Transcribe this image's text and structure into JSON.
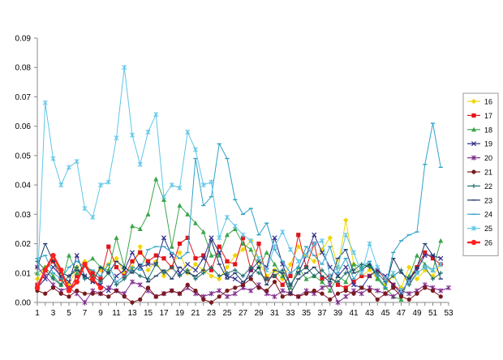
{
  "chart_data": {
    "type": "line",
    "x": [
      1,
      2,
      3,
      4,
      5,
      6,
      7,
      8,
      9,
      10,
      11,
      12,
      13,
      14,
      15,
      16,
      17,
      18,
      19,
      20,
      21,
      22,
      23,
      24,
      25,
      26,
      27,
      28,
      29,
      30,
      31,
      32,
      33,
      34,
      35,
      36,
      37,
      38,
      39,
      40,
      41,
      42,
      43,
      44,
      45,
      46,
      47,
      48,
      49,
      50,
      51,
      52,
      53
    ],
    "x_ticks": [
      1,
      3,
      5,
      7,
      9,
      11,
      13,
      15,
      17,
      19,
      21,
      23,
      25,
      27,
      29,
      31,
      33,
      35,
      37,
      39,
      41,
      43,
      45,
      47,
      49,
      51,
      53
    ],
    "ylim": [
      0,
      0.09
    ],
    "y_ticks": [
      "0.00",
      "0.01",
      "0.02",
      "0.03",
      "0.04",
      "0.05",
      "0.06",
      "0.07",
      "0.08",
      "0.09"
    ],
    "grid": false,
    "legend_position": "right",
    "series": [
      {
        "name": "16",
        "color": "#f2d600",
        "marker": "diamond",
        "values": [
          0.008,
          0.012,
          0.015,
          0.01,
          0.006,
          0.012,
          0.014,
          0.009,
          0.011,
          0.013,
          0.015,
          0.01,
          0.012,
          0.019,
          0.011,
          0.014,
          0.009,
          0.012,
          0.017,
          0.01,
          0.013,
          0.011,
          0.009,
          0.008,
          0.012,
          0.016,
          0.018,
          0.021,
          0.014,
          0.009,
          0.011,
          0.008,
          0.013,
          0.019,
          0.016,
          0.014,
          0.018,
          0.022,
          0.012,
          0.028,
          0.013,
          0.009,
          0.011,
          0.008,
          0.006,
          0.009,
          0.005,
          0.012,
          0.008,
          0.011,
          0.009,
          0.013,
          null
        ]
      },
      {
        "name": "17",
        "color": "#e0161b",
        "marker": "square",
        "values": [
          0.006,
          0.011,
          0.014,
          0.008,
          0.004,
          0.009,
          0.013,
          0.01,
          0.008,
          0.019,
          0.012,
          0.009,
          0.014,
          0.017,
          0.014,
          0.016,
          0.015,
          0.012,
          0.02,
          0.022,
          0.015,
          0.016,
          0.011,
          0.019,
          0.014,
          0.013,
          0.022,
          0.011,
          0.02,
          0.008,
          0.009,
          0.006,
          0.009,
          0.023,
          0.012,
          0.02,
          0.008,
          0.009,
          0.006,
          0.005,
          0.007,
          0.009,
          0.009,
          0.011,
          0.008,
          0.006,
          0.004,
          0.007,
          0.012,
          0.017,
          0.015,
          0.013,
          null
        ]
      },
      {
        "name": "18",
        "color": "#3aa64a",
        "marker": "triangle",
        "values": [
          0.01,
          0.012,
          0.009,
          0.006,
          0.016,
          0.01,
          0.013,
          0.015,
          0.012,
          0.011,
          0.022,
          0.012,
          0.026,
          0.025,
          0.03,
          0.042,
          0.035,
          0.019,
          0.033,
          0.03,
          0.027,
          0.024,
          0.016,
          0.016,
          0.023,
          0.025,
          0.02,
          0.018,
          0.012,
          0.017,
          0.013,
          0.009,
          0.005,
          0.012,
          0.008,
          0.009,
          0.007,
          0.004,
          0.009,
          0.007,
          0.013,
          0.012,
          0.013,
          0.008,
          0.005,
          0.002,
          0.001,
          0.009,
          0.016,
          0.013,
          0.011,
          0.021,
          null
        ]
      },
      {
        "name": "19",
        "color": "#2e2e8c",
        "marker": "x",
        "values": [
          0.005,
          0.008,
          0.012,
          0.009,
          0.007,
          0.016,
          0.009,
          0.007,
          0.006,
          0.004,
          0.009,
          0.011,
          0.017,
          0.012,
          0.013,
          0.013,
          0.022,
          0.016,
          0.01,
          0.013,
          0.011,
          0.015,
          0.022,
          0.017,
          0.009,
          0.008,
          0.006,
          0.011,
          0.014,
          0.012,
          0.022,
          0.013,
          0.006,
          0.01,
          0.016,
          0.023,
          0.017,
          0.012,
          0.009,
          0.012,
          0.006,
          0.005,
          0.009,
          0.011,
          0.009,
          0.006,
          0.003,
          0.008,
          0.011,
          0.016,
          0.016,
          0.015,
          null
        ]
      },
      {
        "name": "20",
        "color": "#7f2b8c",
        "marker": "star",
        "values": [
          0.012,
          0.009,
          0.006,
          0.004,
          0.005,
          0.003,
          0.0,
          0.004,
          0.003,
          0.005,
          0.004,
          0.003,
          0.007,
          0.006,
          0.004,
          0.002,
          0.003,
          0.004,
          0.003,
          0.005,
          0.003,
          0.002,
          0.003,
          0.004,
          0.002,
          0.003,
          0.005,
          0.004,
          0.006,
          0.003,
          0.002,
          0.004,
          0.003,
          0.002,
          0.004,
          0.003,
          0.005,
          0.006,
          0.0,
          0.002,
          0.004,
          0.003,
          0.005,
          0.004,
          0.003,
          0.002,
          0.004,
          0.003,
          0.004,
          0.006,
          0.005,
          0.004,
          0.005
        ]
      },
      {
        "name": "21",
        "color": "#7b1a1e",
        "marker": "circle",
        "values": [
          0.004,
          0.003,
          0.005,
          0.003,
          0.002,
          0.004,
          0.003,
          0.003,
          0.003,
          0.002,
          0.004,
          0.002,
          0.0,
          0.001,
          0.005,
          0.002,
          0.003,
          0.004,
          0.003,
          0.006,
          0.004,
          0.001,
          0.0,
          0.002,
          0.004,
          0.005,
          0.006,
          0.008,
          0.005,
          0.004,
          0.007,
          0.002,
          0.003,
          0.002,
          0.003,
          0.004,
          0.003,
          0.001,
          0.003,
          0.004,
          0.003,
          0.005,
          0.004,
          0.001,
          0.003,
          0.005,
          0.002,
          0.001,
          0.003,
          0.005,
          0.004,
          0.002,
          null
        ]
      },
      {
        "name": "22",
        "color": "#1e6e6e",
        "marker": "plus",
        "values": [
          0.014,
          0.011,
          0.008,
          0.006,
          0.009,
          0.012,
          0.008,
          0.009,
          0.007,
          0.01,
          0.006,
          0.008,
          0.011,
          0.009,
          0.008,
          0.013,
          0.01,
          0.012,
          0.009,
          0.011,
          0.008,
          0.01,
          0.012,
          0.009,
          0.01,
          0.011,
          0.009,
          0.012,
          0.01,
          0.008,
          0.009,
          0.011,
          0.006,
          0.01,
          0.012,
          0.009,
          0.011,
          0.008,
          0.007,
          0.01,
          0.011,
          0.013,
          0.012,
          0.01,
          0.007,
          0.009,
          0.011,
          0.006,
          0.01,
          0.012,
          0.008,
          0.01,
          null
        ]
      },
      {
        "name": "23",
        "color": "#1f3b66",
        "marker": "dash",
        "values": [
          0.012,
          0.02,
          0.014,
          0.01,
          0.009,
          0.011,
          0.009,
          0.007,
          0.012,
          0.01,
          0.014,
          0.012,
          0.01,
          0.013,
          0.007,
          0.009,
          0.011,
          0.008,
          0.012,
          0.01,
          0.009,
          0.011,
          0.021,
          0.013,
          0.008,
          0.01,
          0.007,
          0.009,
          0.012,
          0.006,
          0.011,
          0.01,
          0.003,
          0.008,
          0.01,
          0.012,
          0.009,
          0.007,
          0.015,
          0.018,
          0.01,
          0.011,
          0.013,
          0.009,
          0.005,
          0.015,
          0.01,
          0.008,
          0.012,
          0.02,
          0.016,
          0.008,
          null
        ]
      },
      {
        "name": "24",
        "color": "#2fa2c8",
        "marker": "dash",
        "values": [
          0.015,
          0.016,
          0.01,
          0.008,
          0.012,
          0.014,
          0.012,
          0.011,
          0.009,
          0.013,
          0.007,
          0.009,
          0.012,
          0.011,
          0.018,
          0.019,
          0.019,
          0.017,
          0.015,
          0.017,
          0.049,
          0.033,
          0.036,
          0.054,
          0.049,
          0.035,
          0.03,
          0.032,
          0.023,
          0.027,
          0.018,
          0.014,
          0.01,
          0.012,
          0.019,
          0.016,
          0.013,
          0.019,
          0.01,
          0.015,
          0.008,
          0.012,
          0.014,
          0.009,
          0.005,
          0.017,
          0.021,
          0.023,
          0.024,
          0.047,
          0.061,
          0.046,
          null
        ]
      },
      {
        "name": "25",
        "color": "#5fc6e8",
        "marker": "asterisk",
        "values": [
          0.005,
          0.068,
          0.049,
          0.04,
          0.046,
          0.048,
          0.032,
          0.029,
          0.04,
          0.041,
          0.056,
          0.08,
          0.057,
          0.047,
          0.058,
          0.064,
          0.036,
          0.04,
          0.039,
          0.058,
          0.052,
          0.04,
          0.041,
          0.022,
          0.029,
          0.026,
          0.023,
          0.021,
          0.015,
          0.011,
          0.019,
          0.024,
          0.018,
          0.014,
          0.016,
          0.02,
          0.021,
          0.009,
          0.012,
          0.023,
          0.017,
          0.01,
          0.02,
          0.012,
          0.008,
          0.01,
          0.004,
          0.007,
          0.01,
          0.012,
          0.011,
          0.013,
          null
        ]
      },
      {
        "name": "26",
        "color": "#ff2020",
        "marker": "circle",
        "values": [
          0.005,
          0.011,
          0.016,
          0.011,
          0.004,
          0.007,
          0.013,
          0.008,
          0.005,
          null,
          null,
          null,
          null,
          null,
          null,
          null,
          null,
          null,
          null,
          null,
          null,
          null,
          null,
          null,
          null,
          null,
          null,
          null,
          null,
          null,
          null,
          null,
          null,
          null,
          null,
          null,
          null,
          null,
          null,
          null,
          null,
          null,
          null,
          null,
          null,
          null,
          null,
          null,
          null,
          null,
          null,
          null,
          null
        ]
      }
    ]
  }
}
